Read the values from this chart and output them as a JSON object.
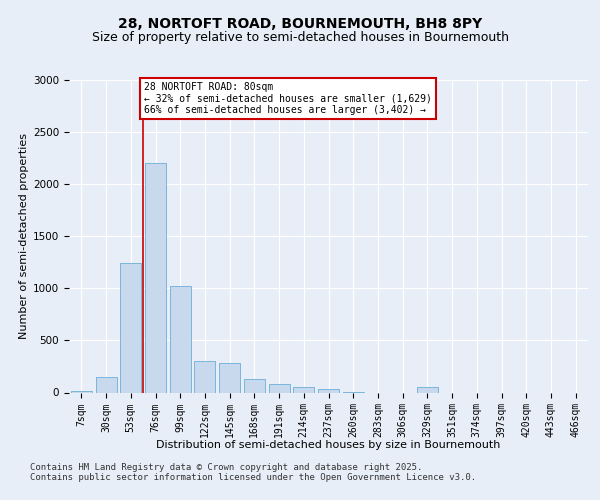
{
  "title_line1": "28, NORTOFT ROAD, BOURNEMOUTH, BH8 8PY",
  "title_line2": "Size of property relative to semi-detached houses in Bournemouth",
  "xlabel": "Distribution of semi-detached houses by size in Bournemouth",
  "ylabel": "Number of semi-detached properties",
  "categories": [
    "7sqm",
    "30sqm",
    "53sqm",
    "76sqm",
    "99sqm",
    "122sqm",
    "145sqm",
    "168sqm",
    "191sqm",
    "214sqm",
    "237sqm",
    "260sqm",
    "283sqm",
    "306sqm",
    "329sqm",
    "351sqm",
    "374sqm",
    "397sqm",
    "420sqm",
    "443sqm",
    "466sqm"
  ],
  "values": [
    18,
    150,
    1240,
    2200,
    1020,
    300,
    280,
    130,
    80,
    55,
    35,
    4,
    0,
    0,
    50,
    0,
    0,
    0,
    0,
    0,
    0
  ],
  "bar_color": "#c8d9ed",
  "bar_edge_color": "#6baed6",
  "vline_color": "#cc0000",
  "annotation_text": "28 NORTOFT ROAD: 80sqm\n← 32% of semi-detached houses are smaller (1,629)\n66% of semi-detached houses are larger (3,402) →",
  "annotation_edge_color": "#cc0000",
  "annotation_face_color": "#ffffff",
  "ylim": [
    0,
    3000
  ],
  "yticks": [
    0,
    500,
    1000,
    1500,
    2000,
    2500,
    3000
  ],
  "footer_text": "Contains HM Land Registry data © Crown copyright and database right 2025.\nContains public sector information licensed under the Open Government Licence v3.0.",
  "bg_color": "#e8eef7",
  "plot_bg_color": "#e8eef7",
  "grid_color": "#ffffff",
  "title_fontsize": 10,
  "subtitle_fontsize": 9,
  "axis_label_fontsize": 8,
  "tick_fontsize": 7,
  "footer_fontsize": 6.5
}
